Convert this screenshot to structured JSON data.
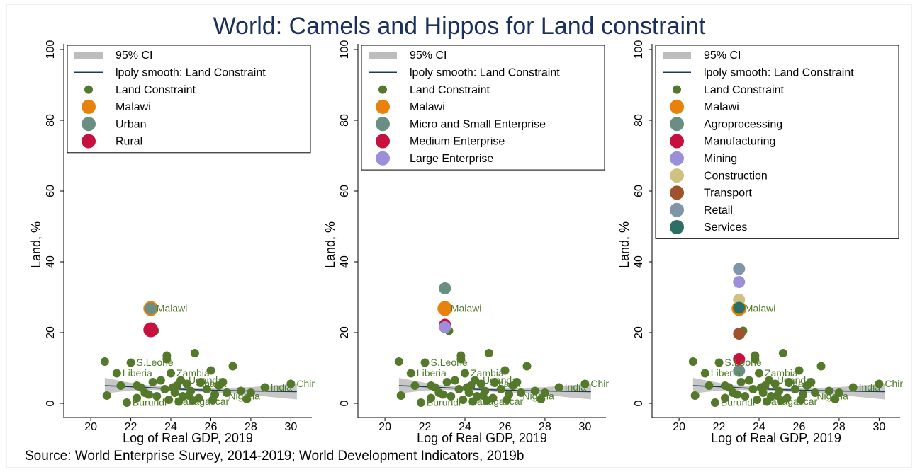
{
  "title": "World: Camels and Hippos for Land constraint",
  "source": "Source: World Enterprise Survey, 2014-2019; World Development Indicators, 2019b",
  "chart_data": [
    {
      "type": "scatter",
      "xlabel": "Log of Real GDP, 2019",
      "ylabel": "Land, %",
      "xlim": [
        18.65,
        31.05
      ],
      "ylim": [
        -4,
        101.6
      ],
      "xticks": [
        20,
        22,
        24,
        26,
        28,
        30
      ],
      "yticks": [
        0,
        20,
        40,
        60,
        80,
        100
      ],
      "legend_position": "top-left",
      "series": [
        {
          "name": "95% CI",
          "kind": "band",
          "color": "#bdbdbd",
          "x": [
            20.7,
            22,
            23,
            24,
            25,
            26,
            27,
            28,
            29,
            30.3
          ],
          "upper": [
            7.2,
            5.8,
            5.0,
            4.6,
            4.4,
            4.3,
            4.4,
            4.6,
            5.0,
            5.5
          ],
          "lower": [
            2.8,
            3.6,
            3.8,
            3.6,
            3.4,
            3.1,
            2.8,
            2.4,
            1.8,
            1.1
          ]
        },
        {
          "name": "lpoly smooth: Land Constraint",
          "kind": "line",
          "color": "#1a3b5c",
          "x": [
            20.7,
            22,
            23,
            24,
            25,
            26,
            27,
            28,
            29,
            30.3
          ],
          "values": [
            5.0,
            4.7,
            4.4,
            4.1,
            3.9,
            3.7,
            3.6,
            3.5,
            3.4,
            3.3
          ]
        },
        {
          "name": "Land Constraint",
          "kind": "small",
          "color": "#55792a",
          "x": [
            20.7,
            20.8,
            21.3,
            21.5,
            22.0,
            22.3,
            22.5,
            22.7,
            22.3,
            21.8,
            23.2,
            23.3,
            23.5,
            23.7,
            23.8,
            23.8,
            24.0,
            24.2,
            24.3,
            24.5,
            24.6,
            24.8,
            25.0,
            25.2,
            25.4,
            25.5,
            25.8,
            26.0,
            26.2,
            26.4,
            26.6,
            26.8,
            27.1,
            27.5,
            27.8,
            28.0,
            28.7,
            30.0,
            23.9,
            24.4,
            25.1,
            22.9,
            23.1,
            26.1,
            24.1,
            24.9
          ],
          "values": [
            11.8,
            2.2,
            8.5,
            5.0,
            11.5,
            1.5,
            4.5,
            3.0,
            5.0,
            0.2,
            20.5,
            2.0,
            6.5,
            4.0,
            13.5,
            12.5,
            8.5,
            3.0,
            5.0,
            6.5,
            2.0,
            5.5,
            3.5,
            14.2,
            1.5,
            6.0,
            4.0,
            9.3,
            2.5,
            5.0,
            6.0,
            3.0,
            10.5,
            3.5,
            1.2,
            3.0,
            4.5,
            5.5,
            1.0,
            0.5,
            0.8,
            2.5,
            6.0,
            1.0,
            4.5,
            2.2
          ]
        },
        {
          "name": "Malawi",
          "kind": "large",
          "color": "#e8820c",
          "x": [
            23.0
          ],
          "values": [
            26.8
          ]
        },
        {
          "name": "Urban",
          "kind": "medium",
          "color": "#6b8e82",
          "x": [
            23.0
          ],
          "values": [
            26.8
          ]
        },
        {
          "name": "Rural",
          "kind": "large",
          "color": "#c8103e",
          "x": [
            23.0
          ],
          "values": [
            20.8
          ]
        }
      ],
      "annotations": [
        {
          "text": "Malawi",
          "x": 23.0,
          "y": 26.8
        },
        {
          "text": "S.Leone",
          "x": 22.0,
          "y": 11.5
        },
        {
          "text": "Liberia",
          "x": 21.3,
          "y": 8.5
        },
        {
          "text": "Zambia",
          "x": 24.0,
          "y": 8.5
        },
        {
          "text": "Uganda",
          "x": 24.6,
          "y": 6.5
        },
        {
          "text": "Ghana",
          "x": 25.0,
          "y": 5.5
        },
        {
          "text": "India",
          "x": 28.7,
          "y": 4.5
        },
        {
          "text": "Nigeria",
          "x": 26.6,
          "y": 2.0
        },
        {
          "text": "Burundi",
          "x": 21.8,
          "y": 0.2
        },
        {
          "text": "Madagascar",
          "x": 23.9,
          "y": 0.5
        },
        {
          "text": "China",
          "x": 30.0,
          "y": 5.5
        }
      ]
    },
    {
      "type": "scatter",
      "xlabel": "Log of Real GDP, 2019",
      "ylabel": "Land, %",
      "xlim": [
        18.65,
        31.05
      ],
      "ylim": [
        -4,
        101.6
      ],
      "xticks": [
        20,
        22,
        24,
        26,
        28,
        30
      ],
      "yticks": [
        0,
        20,
        40,
        60,
        80,
        100
      ],
      "legend_position": "top-left",
      "series": [
        {
          "name": "95% CI",
          "kind": "band",
          "color": "#bdbdbd",
          "x": [
            20.7,
            22,
            23,
            24,
            25,
            26,
            27,
            28,
            29,
            30.3
          ],
          "upper": [
            7.2,
            5.8,
            5.0,
            4.6,
            4.4,
            4.3,
            4.4,
            4.6,
            5.0,
            5.5
          ],
          "lower": [
            2.8,
            3.6,
            3.8,
            3.6,
            3.4,
            3.1,
            2.8,
            2.4,
            1.8,
            1.1
          ]
        },
        {
          "name": "lpoly smooth: Land Constraint",
          "kind": "line",
          "color": "#1a3b5c",
          "x": [
            20.7,
            22,
            23,
            24,
            25,
            26,
            27,
            28,
            29,
            30.3
          ],
          "values": [
            5.0,
            4.7,
            4.4,
            4.1,
            3.9,
            3.7,
            3.6,
            3.5,
            3.4,
            3.3
          ]
        },
        {
          "name": "Land Constraint",
          "kind": "small",
          "color": "#55792a",
          "x": [
            20.7,
            20.8,
            21.3,
            21.5,
            22.0,
            22.3,
            22.5,
            22.7,
            22.3,
            21.8,
            23.2,
            23.3,
            23.5,
            23.7,
            23.8,
            23.8,
            24.0,
            24.2,
            24.3,
            24.5,
            24.6,
            24.8,
            25.0,
            25.2,
            25.4,
            25.5,
            25.8,
            26.0,
            26.2,
            26.4,
            26.6,
            26.8,
            27.1,
            27.5,
            27.8,
            28.0,
            28.7,
            30.0,
            23.9,
            24.4,
            25.1,
            22.9,
            23.1,
            26.1,
            24.1,
            24.9
          ],
          "values": [
            11.8,
            2.2,
            8.5,
            5.0,
            11.5,
            1.5,
            4.5,
            3.0,
            5.0,
            0.2,
            20.5,
            2.0,
            6.5,
            4.0,
            13.5,
            12.5,
            8.5,
            3.0,
            5.0,
            6.5,
            2.0,
            5.5,
            3.5,
            14.2,
            1.5,
            6.0,
            4.0,
            9.3,
            2.5,
            5.0,
            6.0,
            3.0,
            10.5,
            3.5,
            1.2,
            3.0,
            4.5,
            5.5,
            1.0,
            0.5,
            0.8,
            2.5,
            6.0,
            1.0,
            4.5,
            2.2
          ]
        },
        {
          "name": "Malawi",
          "kind": "large",
          "color": "#e8820c",
          "x": [
            23.0
          ],
          "values": [
            26.8
          ]
        },
        {
          "name": "Micro and Small Enterprise",
          "kind": "medium",
          "color": "#6b8e82",
          "x": [
            23.0
          ],
          "values": [
            32.5
          ]
        },
        {
          "name": "Medium Enterprise",
          "kind": "medium",
          "color": "#c8103e",
          "x": [
            23.0
          ],
          "values": [
            22.2
          ]
        },
        {
          "name": "Large Enterprise",
          "kind": "medium",
          "color": "#9b8fd9",
          "x": [
            23.0
          ],
          "values": [
            21.5
          ]
        }
      ],
      "annotations": [
        {
          "text": "Malawi",
          "x": 23.0,
          "y": 26.8
        },
        {
          "text": "S.Leone",
          "x": 22.0,
          "y": 11.5
        },
        {
          "text": "Liberia",
          "x": 21.3,
          "y": 8.5
        },
        {
          "text": "Zambia",
          "x": 24.0,
          "y": 8.5
        },
        {
          "text": "Uganda",
          "x": 24.6,
          "y": 6.5
        },
        {
          "text": "Ghana",
          "x": 25.0,
          "y": 5.5
        },
        {
          "text": "India",
          "x": 28.7,
          "y": 4.5
        },
        {
          "text": "Nigeria",
          "x": 26.6,
          "y": 2.0
        },
        {
          "text": "Burundi",
          "x": 21.8,
          "y": 0.2
        },
        {
          "text": "Madagascar",
          "x": 23.9,
          "y": 0.5
        },
        {
          "text": "China",
          "x": 30.0,
          "y": 5.5
        }
      ]
    },
    {
      "type": "scatter",
      "xlabel": "Log of Real GDP, 2019",
      "ylabel": "Land, %",
      "xlim": [
        18.65,
        31.05
      ],
      "ylim": [
        -4,
        101.6
      ],
      "xticks": [
        20,
        22,
        24,
        26,
        28,
        30
      ],
      "yticks": [
        0,
        20,
        40,
        60,
        80,
        100
      ],
      "legend_position": "top-left",
      "series": [
        {
          "name": "95% CI",
          "kind": "band",
          "color": "#bdbdbd",
          "x": [
            20.7,
            22,
            23,
            24,
            25,
            26,
            27,
            28,
            29,
            30.3
          ],
          "upper": [
            7.2,
            5.8,
            5.0,
            4.6,
            4.4,
            4.3,
            4.4,
            4.6,
            5.0,
            5.5
          ],
          "lower": [
            2.8,
            3.6,
            3.8,
            3.6,
            3.4,
            3.1,
            2.8,
            2.4,
            1.8,
            1.1
          ]
        },
        {
          "name": "lpoly smooth: Land Constraint",
          "kind": "line",
          "color": "#1a3b5c",
          "x": [
            20.7,
            22,
            23,
            24,
            25,
            26,
            27,
            28,
            29,
            30.3
          ],
          "values": [
            5.0,
            4.7,
            4.4,
            4.1,
            3.9,
            3.7,
            3.6,
            3.5,
            3.4,
            3.3
          ]
        },
        {
          "name": "Land Constraint",
          "kind": "small",
          "color": "#55792a",
          "x": [
            20.7,
            20.8,
            21.3,
            21.5,
            22.0,
            22.3,
            22.5,
            22.7,
            22.3,
            21.8,
            23.2,
            23.3,
            23.5,
            23.7,
            23.8,
            23.8,
            24.0,
            24.2,
            24.3,
            24.5,
            24.6,
            24.8,
            25.0,
            25.2,
            25.4,
            25.5,
            25.8,
            26.0,
            26.2,
            26.4,
            26.6,
            26.8,
            27.1,
            27.5,
            27.8,
            28.0,
            28.7,
            30.0,
            23.9,
            24.4,
            25.1,
            22.9,
            23.1,
            26.1,
            24.1,
            24.9
          ],
          "values": [
            11.8,
            2.2,
            8.5,
            5.0,
            11.5,
            1.5,
            4.5,
            3.0,
            5.0,
            0.2,
            20.5,
            2.0,
            6.5,
            4.0,
            13.5,
            12.5,
            8.5,
            3.0,
            5.0,
            6.5,
            2.0,
            5.5,
            3.5,
            14.2,
            1.5,
            6.0,
            4.0,
            9.3,
            2.5,
            5.0,
            6.0,
            3.0,
            10.5,
            3.5,
            1.2,
            3.0,
            4.5,
            5.5,
            1.0,
            0.5,
            0.8,
            2.5,
            6.0,
            1.0,
            4.5,
            2.2
          ]
        },
        {
          "name": "Malawi",
          "kind": "large",
          "color": "#e8820c",
          "x": [
            23.0
          ],
          "values": [
            26.8
          ]
        },
        {
          "name": "Agroprocessing",
          "kind": "medium",
          "color": "#6b8e82",
          "x": [
            23.0
          ],
          "values": [
            9.2
          ]
        },
        {
          "name": "Manufacturing",
          "kind": "medium",
          "color": "#c8103e",
          "x": [
            23.0
          ],
          "values": [
            12.5
          ]
        },
        {
          "name": "Mining",
          "kind": "medium",
          "color": "#9b8fd9",
          "x": [
            23.0
          ],
          "values": [
            34.3
          ]
        },
        {
          "name": "Construction",
          "kind": "medium",
          "color": "#cdc27f",
          "x": [
            23.0
          ],
          "values": [
            29.3
          ]
        },
        {
          "name": "Transport",
          "kind": "medium",
          "color": "#a0522d",
          "x": [
            23.0
          ],
          "values": [
            19.7
          ]
        },
        {
          "name": "Retail",
          "kind": "medium",
          "color": "#7f95a8",
          "x": [
            23.0
          ],
          "values": [
            38.0
          ]
        },
        {
          "name": "Services",
          "kind": "medium",
          "color": "#2e6f65",
          "x": [
            23.0
          ],
          "values": [
            27.0
          ]
        }
      ],
      "annotations": [
        {
          "text": "Malawi",
          "x": 23.0,
          "y": 26.8
        },
        {
          "text": "S.Leone",
          "x": 22.0,
          "y": 11.5
        },
        {
          "text": "Liberia",
          "x": 21.3,
          "y": 8.5
        },
        {
          "text": "Zambia",
          "x": 24.0,
          "y": 8.5
        },
        {
          "text": "Uganda",
          "x": 24.6,
          "y": 6.5
        },
        {
          "text": "Ghana",
          "x": 25.0,
          "y": 5.5
        },
        {
          "text": "India",
          "x": 28.7,
          "y": 4.5
        },
        {
          "text": "Nigeria",
          "x": 26.6,
          "y": 2.0
        },
        {
          "text": "Burundi",
          "x": 21.8,
          "y": 0.2
        },
        {
          "text": "Madagascar",
          "x": 23.9,
          "y": 0.5
        },
        {
          "text": "China",
          "x": 30.0,
          "y": 5.5
        }
      ]
    }
  ]
}
